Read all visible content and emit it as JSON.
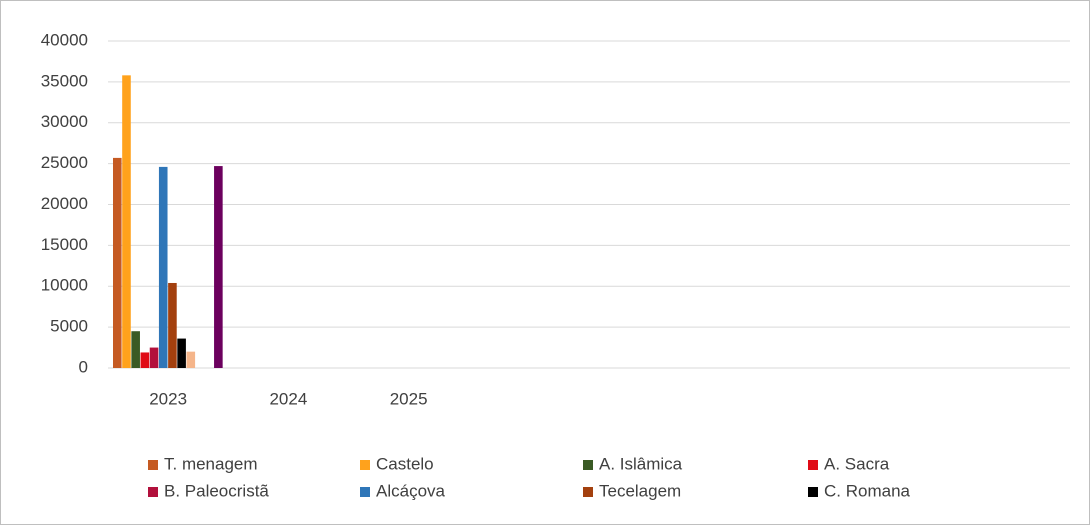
{
  "chart_data": {
    "type": "bar",
    "categories": [
      "2023",
      "2024",
      "2025",
      null,
      null,
      null,
      null,
      null
    ],
    "series": [
      {
        "name": "T. menagem",
        "color": "#c55a22",
        "values": [
          25700,
          null,
          null,
          null,
          null,
          null,
          null,
          null
        ]
      },
      {
        "name": "Castelo",
        "color": "#ffa21c",
        "values": [
          35800,
          null,
          null,
          null,
          null,
          null,
          null,
          null
        ]
      },
      {
        "name": "A. Islâmica",
        "color": "#3a5a24",
        "values": [
          4500,
          null,
          null,
          null,
          null,
          null,
          null,
          null
        ]
      },
      {
        "name": "A. Sacra",
        "color": "#e00b16",
        "values": [
          1900,
          null,
          null,
          null,
          null,
          null,
          null,
          null
        ]
      },
      {
        "name": "B. Paleocristã",
        "color": "#b2103c",
        "values": [
          2500,
          null,
          null,
          null,
          null,
          null,
          null,
          null
        ]
      },
      {
        "name": "Alcáçova",
        "color": "#2f76b8",
        "values": [
          24600,
          null,
          null,
          null,
          null,
          null,
          null,
          null
        ]
      },
      {
        "name": "Tecelagem",
        "color": "#a3400e",
        "values": [
          10400,
          null,
          null,
          null,
          null,
          null,
          null,
          null
        ]
      },
      {
        "name": "C. Romana",
        "color": "#000000",
        "values": [
          3600,
          null,
          null,
          null,
          null,
          null,
          null,
          null
        ]
      },
      {
        "color": "#f5b58a",
        "values": [
          2000,
          null,
          null,
          null,
          null,
          null,
          null,
          null
        ]
      },
      {
        "color": "#7f7f7f",
        "values": [
          null,
          null,
          null,
          null,
          null,
          null,
          null,
          null
        ]
      },
      {
        "color": "#7f7f7f",
        "values": [
          null,
          null,
          null,
          null,
          null,
          null,
          null,
          null
        ]
      },
      {
        "color": "#6c005e",
        "values": [
          24700,
          null,
          null,
          null,
          null,
          null,
          null,
          null
        ]
      }
    ],
    "ylim": [
      0,
      40000
    ],
    "yticks": [
      0,
      5000,
      10000,
      15000,
      20000,
      25000,
      30000,
      35000,
      40000
    ],
    "grid": true,
    "legend": "bottom"
  }
}
